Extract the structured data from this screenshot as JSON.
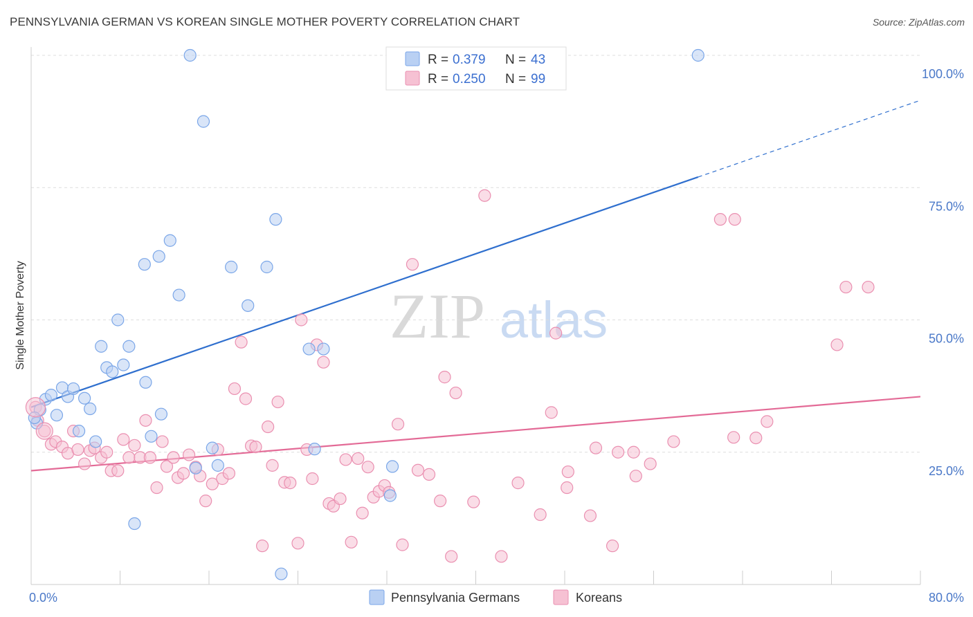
{
  "title": "PENNSYLVANIA GERMAN VS KOREAN SINGLE MOTHER POVERTY CORRELATION CHART",
  "source": "Source: ZipAtlas.com",
  "watermark": {
    "zip": "ZIP",
    "atlas": "atlas"
  },
  "chart_data": {
    "type": "scatter",
    "ylabel": "Single Mother Poverty",
    "xlim": [
      0,
      80
    ],
    "ylim": [
      0,
      100
    ],
    "x_tick_labels": [
      {
        "value": 0,
        "label": "0.0%"
      },
      {
        "value": 80,
        "label": "80.0%"
      }
    ],
    "y_tick_labels": [
      {
        "value": 25,
        "label": "25.0%"
      },
      {
        "value": 50,
        "label": "50.0%"
      },
      {
        "value": 75,
        "label": "75.0%"
      },
      {
        "value": 100,
        "label": "100.0%"
      }
    ],
    "grid": "horizontal dashed",
    "legend": {
      "placement": "top-center",
      "entries": [
        {
          "r_label": "R =",
          "r_value": "0.379",
          "n_label": "N =",
          "n_value": "43"
        },
        {
          "r_label": "R =",
          "r_value": "0.250",
          "n_label": "N =",
          "n_value": "99"
        }
      ]
    },
    "series": [
      {
        "name": "Pennsylvania Germans",
        "color": "#7aa6e8",
        "fill": "#b9d0f3",
        "trend_color": "#2f6fce",
        "trend": {
          "x0": 0,
          "y0": 33.5,
          "x1": 60,
          "y1": 77.0,
          "extend_x": 80,
          "extend_y": 91.5
        },
        "points": [
          [
            0.5,
            30.5
          ],
          [
            0.8,
            33
          ],
          [
            1.3,
            35
          ],
          [
            1.8,
            35.8
          ],
          [
            2.3,
            32
          ],
          [
            2.8,
            37.2
          ],
          [
            3.3,
            35.5
          ],
          [
            3.8,
            37
          ],
          [
            4.3,
            29
          ],
          [
            4.8,
            35.2
          ],
          [
            5.3,
            33.2
          ],
          [
            5.8,
            27
          ],
          [
            6.3,
            45
          ],
          [
            6.8,
            41
          ],
          [
            7.3,
            40.2
          ],
          [
            7.8,
            50
          ],
          [
            8.3,
            41.5
          ],
          [
            8.8,
            45
          ],
          [
            9.3,
            11.5
          ],
          [
            10.2,
            60.5
          ],
          [
            10.3,
            38.2
          ],
          [
            10.8,
            28
          ],
          [
            11.5,
            62
          ],
          [
            11.7,
            32.2
          ],
          [
            12.5,
            65
          ],
          [
            13.3,
            54.7
          ],
          [
            14.3,
            100
          ],
          [
            15.5,
            87.5
          ],
          [
            14.8,
            22
          ],
          [
            16.3,
            25.8
          ],
          [
            16.8,
            22.5
          ],
          [
            18,
            60
          ],
          [
            19.5,
            52.7
          ],
          [
            21.2,
            60
          ],
          [
            22.0,
            69
          ],
          [
            22.5,
            2
          ],
          [
            25,
            44.5
          ],
          [
            25.5,
            25.6
          ],
          [
            26.3,
            44.5
          ],
          [
            32.5,
            22.3
          ],
          [
            32.3,
            16.8
          ],
          [
            60.0,
            100
          ],
          [
            0.3,
            31.5
          ]
        ]
      },
      {
        "name": "Koreans",
        "color": "#ea8fb0",
        "fill": "#f6c1d3",
        "trend_color": "#e36a96",
        "trend": {
          "x0": 0,
          "y0": 21.5,
          "x1": 80,
          "y1": 35.5
        },
        "points": [
          [
            0.4,
            33.5
          ],
          [
            0.6,
            31
          ],
          [
            1.2,
            29
          ],
          [
            1.8,
            26.5
          ],
          [
            2.2,
            27
          ],
          [
            2.8,
            26
          ],
          [
            3.3,
            24.8
          ],
          [
            3.8,
            29
          ],
          [
            4.2,
            25.5
          ],
          [
            4.8,
            22.8
          ],
          [
            5.3,
            25.3
          ],
          [
            5.7,
            25.8
          ],
          [
            6.3,
            24
          ],
          [
            6.8,
            25
          ],
          [
            7.2,
            21.5
          ],
          [
            7.8,
            21.5
          ],
          [
            8.3,
            27.4
          ],
          [
            8.8,
            24
          ],
          [
            9.3,
            26.3
          ],
          [
            9.8,
            24
          ],
          [
            10.3,
            31
          ],
          [
            10.7,
            24
          ],
          [
            11.3,
            18.3
          ],
          [
            11.8,
            27
          ],
          [
            12.2,
            22.3
          ],
          [
            12.8,
            24
          ],
          [
            13.2,
            20.2
          ],
          [
            13.7,
            21
          ],
          [
            14.2,
            24.5
          ],
          [
            14.8,
            22.2
          ],
          [
            15.2,
            20.5
          ],
          [
            15.7,
            15.8
          ],
          [
            16.3,
            19
          ],
          [
            16.8,
            25.5
          ],
          [
            17.2,
            20
          ],
          [
            17.8,
            21
          ],
          [
            18.3,
            37
          ],
          [
            18.9,
            45.8
          ],
          [
            19.3,
            35.1
          ],
          [
            19.8,
            26.2
          ],
          [
            20.2,
            26
          ],
          [
            20.8,
            7.3
          ],
          [
            21.3,
            29.8
          ],
          [
            21.7,
            22.5
          ],
          [
            22.2,
            34.5
          ],
          [
            22.8,
            19.3
          ],
          [
            23.3,
            19.2
          ],
          [
            24.0,
            7.8
          ],
          [
            24.3,
            50
          ],
          [
            24.8,
            25.5
          ],
          [
            25.3,
            20
          ],
          [
            25.7,
            45.3
          ],
          [
            26.3,
            42
          ],
          [
            26.8,
            15.3
          ],
          [
            27.2,
            14.8
          ],
          [
            27.8,
            16.2
          ],
          [
            28.3,
            23.6
          ],
          [
            28.8,
            8
          ],
          [
            29.4,
            23.8
          ],
          [
            29.8,
            13.5
          ],
          [
            30.3,
            22.2
          ],
          [
            30.8,
            16.5
          ],
          [
            31.3,
            17.6
          ],
          [
            31.8,
            18.7
          ],
          [
            32.2,
            17.4
          ],
          [
            33.0,
            30.3
          ],
          [
            33.4,
            7.5
          ],
          [
            34.3,
            60.5
          ],
          [
            34.8,
            21.6
          ],
          [
            35.8,
            20.8
          ],
          [
            36.8,
            15.8
          ],
          [
            37.2,
            39.2
          ],
          [
            37.8,
            5.3
          ],
          [
            38.2,
            36.2
          ],
          [
            39.8,
            15.6
          ],
          [
            40.8,
            73.5
          ],
          [
            42.3,
            5.3
          ],
          [
            43.8,
            19.2
          ],
          [
            45.8,
            13.2
          ],
          [
            46.8,
            32.5
          ],
          [
            47.2,
            47.5
          ],
          [
            48.2,
            18.3
          ],
          [
            48.3,
            21.3
          ],
          [
            50.3,
            13
          ],
          [
            50.8,
            25.8
          ],
          [
            52.3,
            7.3
          ],
          [
            52.8,
            25
          ],
          [
            54.2,
            25
          ],
          [
            54.4,
            20.5
          ],
          [
            55.7,
            22.8
          ],
          [
            57.8,
            27
          ],
          [
            62.0,
            69
          ],
          [
            63.3,
            69
          ],
          [
            63.2,
            27.8
          ],
          [
            65.2,
            27.7
          ],
          [
            66.2,
            30.8
          ],
          [
            72.5,
            45.3
          ],
          [
            73.3,
            56.2
          ],
          [
            75.3,
            56.2
          ]
        ]
      }
    ]
  }
}
